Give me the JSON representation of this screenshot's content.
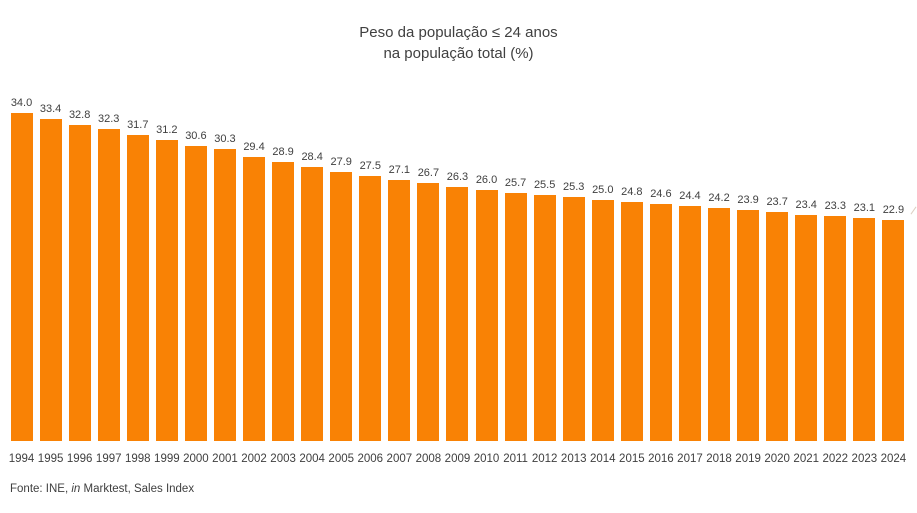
{
  "chart_data": {
    "type": "bar",
    "title": "Peso da população ≤ 24 anos\nna população total (%)",
    "categories": [
      "1994",
      "1995",
      "1996",
      "1997",
      "1998",
      "1999",
      "2000",
      "2001",
      "2002",
      "2003",
      "2004",
      "2005",
      "2006",
      "2007",
      "2008",
      "2009",
      "2010",
      "2011",
      "2012",
      "2013",
      "2014",
      "2015",
      "2016",
      "2017",
      "2018",
      "2019",
      "2020",
      "2021",
      "2022",
      "2023",
      "2024"
    ],
    "values": [
      34.0,
      33.4,
      32.8,
      32.3,
      31.7,
      31.2,
      30.6,
      30.3,
      29.4,
      28.9,
      28.4,
      27.9,
      27.5,
      27.1,
      26.7,
      26.3,
      26.0,
      25.7,
      25.5,
      25.3,
      25.0,
      24.8,
      24.6,
      24.4,
      24.2,
      23.9,
      23.7,
      23.4,
      23.3,
      23.1,
      22.9
    ],
    "xlabel": "",
    "ylabel": "",
    "ylim": [
      0,
      34
    ],
    "grid": false,
    "legend": false,
    "data_labels": true,
    "bar_color": "#f98205"
  },
  "footer": {
    "prefix": "Fonte: INE, ",
    "italic": "in",
    "suffix": " Marktest, Sales Index"
  },
  "colors": {
    "bar": "#f98205",
    "text": "#404040",
    "background": "#ffffff"
  }
}
